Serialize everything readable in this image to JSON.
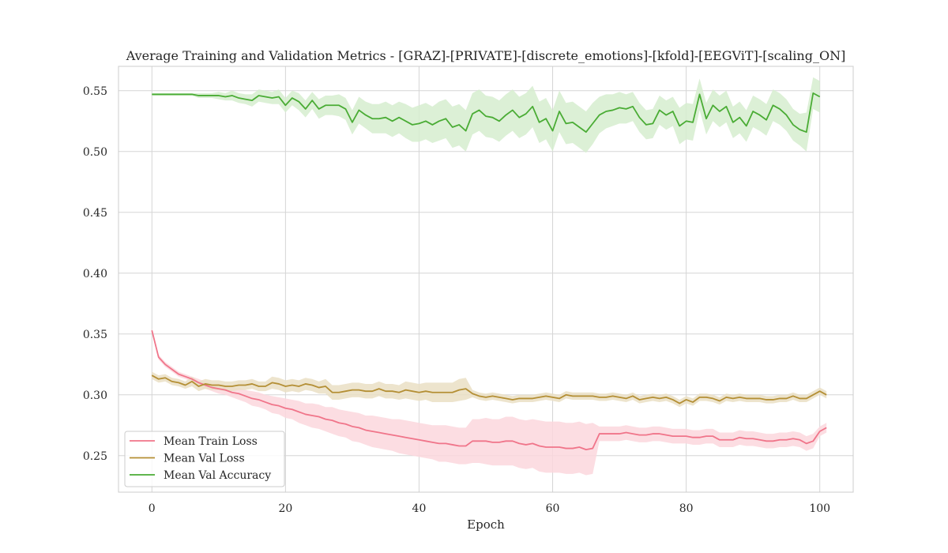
{
  "chart_data": {
    "type": "line",
    "title": "Average Training and Validation Metrics - [GRAZ]-[PRIVATE]-[discrete_emotions]-[kfold]-[EEGViT]-[scaling_ON]",
    "xlabel": "Epoch",
    "ylabel": "",
    "xlim": [
      -5,
      105
    ],
    "ylim": [
      0.22,
      0.57
    ],
    "xticks": [
      0,
      20,
      40,
      60,
      80,
      100
    ],
    "yticks": [
      0.25,
      0.3,
      0.35,
      0.4,
      0.45,
      0.5,
      0.55
    ],
    "ytick_labels": [
      "0.25",
      "0.30",
      "0.35",
      "0.40",
      "0.45",
      "0.50",
      "0.55"
    ],
    "grid": true,
    "legend_position": "lower-left",
    "series": [
      {
        "name": "Mean Train Loss",
        "color": "#f0758a",
        "band_color": "#fbd7dd",
        "x_start": 0,
        "x_step": 1,
        "values": [
          0.353,
          0.331,
          0.325,
          0.321,
          0.317,
          0.315,
          0.313,
          0.31,
          0.308,
          0.306,
          0.305,
          0.304,
          0.302,
          0.301,
          0.299,
          0.297,
          0.296,
          0.294,
          0.292,
          0.291,
          0.289,
          0.288,
          0.286,
          0.284,
          0.283,
          0.282,
          0.28,
          0.279,
          0.277,
          0.276,
          0.274,
          0.273,
          0.271,
          0.27,
          0.269,
          0.268,
          0.267,
          0.266,
          0.265,
          0.264,
          0.263,
          0.262,
          0.261,
          0.26,
          0.26,
          0.259,
          0.258,
          0.258,
          0.262,
          0.262,
          0.262,
          0.261,
          0.261,
          0.262,
          0.262,
          0.26,
          0.259,
          0.26,
          0.258,
          0.257,
          0.257,
          0.257,
          0.256,
          0.256,
          0.257,
          0.255,
          0.256,
          0.268,
          0.268,
          0.268,
          0.268,
          0.269,
          0.268,
          0.267,
          0.267,
          0.268,
          0.268,
          0.267,
          0.266,
          0.266,
          0.266,
          0.265,
          0.265,
          0.266,
          0.266,
          0.263,
          0.263,
          0.263,
          0.265,
          0.264,
          0.264,
          0.263,
          0.262,
          0.262,
          0.263,
          0.263,
          0.264,
          0.263,
          0.26,
          0.262,
          0.27,
          0.273
        ],
        "band_width": [
          0.002,
          0.002,
          0.002,
          0.002,
          0.002,
          0.002,
          0.002,
          0.003,
          0.003,
          0.003,
          0.004,
          0.004,
          0.004,
          0.005,
          0.005,
          0.006,
          0.006,
          0.006,
          0.007,
          0.007,
          0.008,
          0.008,
          0.009,
          0.009,
          0.01,
          0.01,
          0.01,
          0.011,
          0.011,
          0.011,
          0.012,
          0.012,
          0.012,
          0.013,
          0.013,
          0.013,
          0.013,
          0.014,
          0.014,
          0.014,
          0.014,
          0.014,
          0.014,
          0.015,
          0.015,
          0.015,
          0.015,
          0.015,
          0.018,
          0.018,
          0.019,
          0.019,
          0.019,
          0.02,
          0.02,
          0.02,
          0.02,
          0.02,
          0.021,
          0.021,
          0.021,
          0.021,
          0.021,
          0.021,
          0.021,
          0.021,
          0.021,
          0.006,
          0.006,
          0.006,
          0.006,
          0.006,
          0.006,
          0.006,
          0.006,
          0.006,
          0.006,
          0.006,
          0.006,
          0.006,
          0.006,
          0.006,
          0.006,
          0.006,
          0.006,
          0.006,
          0.006,
          0.006,
          0.006,
          0.006,
          0.006,
          0.006,
          0.006,
          0.006,
          0.006,
          0.006,
          0.006,
          0.006,
          0.006,
          0.006,
          0.004,
          0.004
        ]
      },
      {
        "name": "Mean Val Loss",
        "color": "#b48f35",
        "band_color": "#eadfc4",
        "x_start": 0,
        "x_step": 1,
        "values": [
          0.316,
          0.313,
          0.314,
          0.311,
          0.31,
          0.308,
          0.311,
          0.307,
          0.309,
          0.308,
          0.308,
          0.307,
          0.307,
          0.308,
          0.308,
          0.309,
          0.307,
          0.307,
          0.31,
          0.309,
          0.307,
          0.308,
          0.307,
          0.309,
          0.308,
          0.306,
          0.307,
          0.302,
          0.302,
          0.303,
          0.304,
          0.304,
          0.303,
          0.303,
          0.305,
          0.303,
          0.303,
          0.302,
          0.304,
          0.303,
          0.302,
          0.303,
          0.302,
          0.302,
          0.302,
          0.302,
          0.304,
          0.305,
          0.301,
          0.299,
          0.298,
          0.299,
          0.298,
          0.297,
          0.296,
          0.297,
          0.297,
          0.297,
          0.298,
          0.299,
          0.298,
          0.297,
          0.3,
          0.299,
          0.299,
          0.299,
          0.299,
          0.298,
          0.298,
          0.299,
          0.298,
          0.297,
          0.299,
          0.296,
          0.297,
          0.298,
          0.297,
          0.298,
          0.296,
          0.293,
          0.296,
          0.294,
          0.298,
          0.298,
          0.297,
          0.295,
          0.298,
          0.297,
          0.298,
          0.297,
          0.297,
          0.297,
          0.296,
          0.296,
          0.297,
          0.297,
          0.299,
          0.297,
          0.297,
          0.3,
          0.303,
          0.3
        ],
        "band_width": [
          0.003,
          0.003,
          0.003,
          0.003,
          0.003,
          0.003,
          0.004,
          0.004,
          0.004,
          0.004,
          0.004,
          0.004,
          0.004,
          0.004,
          0.004,
          0.004,
          0.004,
          0.004,
          0.005,
          0.005,
          0.005,
          0.005,
          0.005,
          0.005,
          0.005,
          0.005,
          0.006,
          0.006,
          0.006,
          0.006,
          0.006,
          0.006,
          0.006,
          0.006,
          0.006,
          0.006,
          0.006,
          0.006,
          0.007,
          0.007,
          0.007,
          0.007,
          0.008,
          0.008,
          0.008,
          0.008,
          0.009,
          0.009,
          0.003,
          0.003,
          0.003,
          0.003,
          0.003,
          0.003,
          0.003,
          0.003,
          0.003,
          0.003,
          0.003,
          0.003,
          0.003,
          0.003,
          0.003,
          0.003,
          0.003,
          0.003,
          0.003,
          0.003,
          0.003,
          0.003,
          0.003,
          0.003,
          0.003,
          0.003,
          0.003,
          0.003,
          0.003,
          0.003,
          0.003,
          0.003,
          0.003,
          0.003,
          0.003,
          0.003,
          0.003,
          0.003,
          0.003,
          0.003,
          0.003,
          0.003,
          0.003,
          0.003,
          0.003,
          0.003,
          0.003,
          0.003,
          0.003,
          0.003,
          0.003,
          0.003,
          0.003,
          0.003
        ]
      },
      {
        "name": "Mean Val Accuracy",
        "color": "#4aac35",
        "band_color": "#d6edcf",
        "x_start": 0,
        "x_step": 1,
        "values": [
          0.547,
          0.547,
          0.547,
          0.547,
          0.547,
          0.547,
          0.547,
          0.546,
          0.546,
          0.546,
          0.546,
          0.545,
          0.546,
          0.544,
          0.543,
          0.542,
          0.546,
          0.545,
          0.544,
          0.545,
          0.538,
          0.544,
          0.541,
          0.535,
          0.542,
          0.535,
          0.538,
          0.538,
          0.538,
          0.535,
          0.524,
          0.534,
          0.53,
          0.527,
          0.527,
          0.528,
          0.525,
          0.528,
          0.525,
          0.522,
          0.523,
          0.525,
          0.522,
          0.525,
          0.527,
          0.52,
          0.522,
          0.517,
          0.531,
          0.534,
          0.529,
          0.528,
          0.525,
          0.53,
          0.534,
          0.528,
          0.531,
          0.537,
          0.524,
          0.527,
          0.517,
          0.533,
          0.523,
          0.524,
          0.52,
          0.516,
          0.523,
          0.53,
          0.533,
          0.534,
          0.536,
          0.535,
          0.537,
          0.528,
          0.522,
          0.523,
          0.534,
          0.53,
          0.533,
          0.521,
          0.525,
          0.524,
          0.547,
          0.527,
          0.538,
          0.533,
          0.537,
          0.524,
          0.528,
          0.521,
          0.533,
          0.53,
          0.526,
          0.538,
          0.535,
          0.53,
          0.522,
          0.518,
          0.516,
          0.548,
          0.545
        ],
        "band_width": [
          0.001,
          0.001,
          0.001,
          0.001,
          0.001,
          0.001,
          0.001,
          0.002,
          0.002,
          0.002,
          0.003,
          0.003,
          0.004,
          0.004,
          0.004,
          0.005,
          0.005,
          0.005,
          0.005,
          0.006,
          0.006,
          0.006,
          0.007,
          0.007,
          0.007,
          0.008,
          0.008,
          0.008,
          0.009,
          0.009,
          0.01,
          0.011,
          0.011,
          0.012,
          0.012,
          0.013,
          0.013,
          0.013,
          0.014,
          0.014,
          0.015,
          0.015,
          0.015,
          0.016,
          0.016,
          0.017,
          0.017,
          0.017,
          0.017,
          0.017,
          0.017,
          0.017,
          0.017,
          0.017,
          0.017,
          0.017,
          0.017,
          0.017,
          0.017,
          0.017,
          0.017,
          0.017,
          0.017,
          0.017,
          0.017,
          0.017,
          0.017,
          0.015,
          0.014,
          0.013,
          0.013,
          0.012,
          0.012,
          0.012,
          0.012,
          0.012,
          0.012,
          0.012,
          0.012,
          0.015,
          0.015,
          0.015,
          0.013,
          0.013,
          0.013,
          0.013,
          0.013,
          0.013,
          0.013,
          0.013,
          0.013,
          0.013,
          0.013,
          0.013,
          0.013,
          0.013,
          0.013,
          0.013,
          0.016,
          0.013,
          0.013
        ]
      }
    ]
  }
}
